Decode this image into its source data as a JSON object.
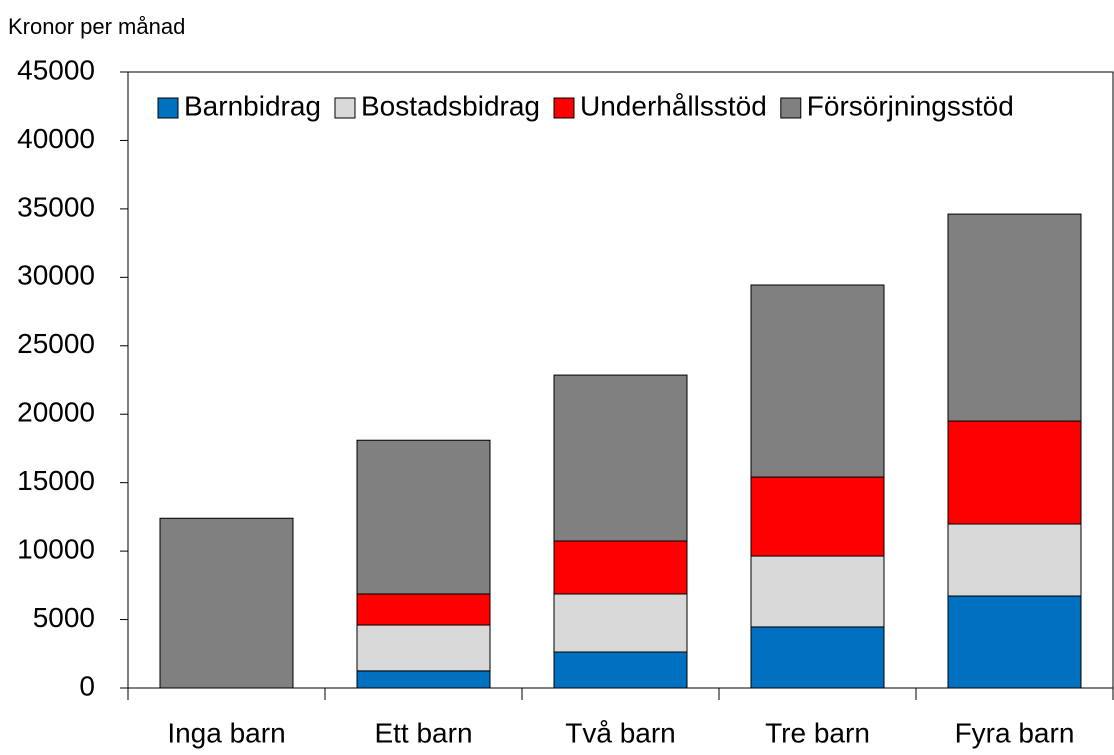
{
  "chart_data": {
    "type": "bar",
    "stacked": true,
    "y_label": "Kronor per månad",
    "categories": [
      "Inga barn",
      "Ett barn",
      "Två barn",
      "Tre barn",
      "Fyra barn"
    ],
    "series": [
      {
        "name": "Barnbidrag",
        "color": "#0070c0",
        "values": [
          0,
          1250,
          2630,
          4460,
          6720
        ]
      },
      {
        "name": "Bostadsbidrag",
        "color": "#d9d9d9",
        "values": [
          0,
          3350,
          4240,
          5180,
          5260
        ]
      },
      {
        "name": "Underhållsstöd",
        "color": "#ff0000",
        "values": [
          0,
          2270,
          3870,
          5770,
          7520
        ]
      },
      {
        "name": "Försörjningsstöd",
        "color": "#808080",
        "values": [
          12400,
          11230,
          12120,
          14030,
          15120
        ]
      }
    ],
    "ylim": [
      0,
      45000
    ],
    "yticks": [
      0,
      5000,
      10000,
      15000,
      20000,
      25000,
      30000,
      35000,
      40000,
      45000
    ],
    "legend": "top-left",
    "grid": false
  }
}
